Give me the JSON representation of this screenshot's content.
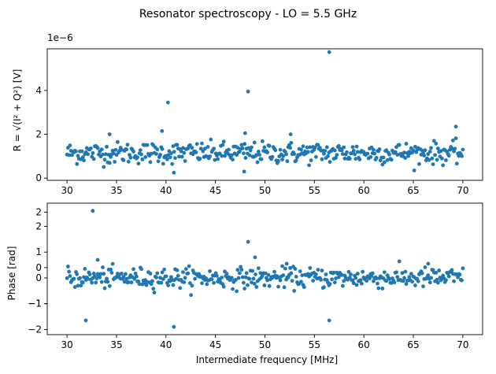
{
  "chart_data": {
    "type": "scatter",
    "title": "Resonator spectroscopy - LO = 5.5 GHz",
    "marker_color": "#1f77b4",
    "panels": [
      {
        "id": "amplitude",
        "ylabel": "R = √(I² + Q²) [V]",
        "ylabel_parts": {
          "prefix": "R = ",
          "radicand_i": "I",
          "radicand_plus": " + Q",
          "unit": " [V]"
        },
        "offset_text": "1e−6",
        "xlim": [
          28,
          72
        ],
        "ylim": [
          -0.1,
          5.9
        ],
        "xticks": [
          30,
          35,
          40,
          45,
          50,
          55,
          60,
          65,
          70
        ],
        "xtick_labels": [
          "30",
          "35",
          "40",
          "45",
          "50",
          "55",
          "60",
          "65",
          "70"
        ],
        "yticks": [
          0,
          2,
          4
        ],
        "ytick_labels": [
          "0",
          "2",
          "4"
        ],
        "outliers": [
          {
            "x": 40.2,
            "y": 3.45
          },
          {
            "x": 48.3,
            "y": 3.95
          },
          {
            "x": 56.5,
            "y": 5.75
          },
          {
            "x": 40.8,
            "y": 0.25
          },
          {
            "x": 47.9,
            "y": 0.3
          },
          {
            "x": 39.6,
            "y": 2.15
          },
          {
            "x": 69.3,
            "y": 2.35
          },
          {
            "x": 48.0,
            "y": 2.05
          },
          {
            "x": 52.6,
            "y": 2.0
          },
          {
            "x": 34.3,
            "y": 2.0
          }
        ],
        "noise": {
          "center": 1.15,
          "spread": 0.35
        }
      },
      {
        "id": "phase",
        "ylabel": "Phase [rad]",
        "xlabel": "Intermediate frequency [MHz]",
        "xlim": [
          28,
          72
        ],
        "ylim": [
          -2.2,
          2.9
        ],
        "xticks": [
          30,
          35,
          40,
          45,
          50,
          55,
          60,
          65,
          70
        ],
        "xtick_labels": [
          "30",
          "35",
          "40",
          "45",
          "50",
          "55",
          "60",
          "65",
          "70"
        ],
        "yticks": [
          -2,
          -1,
          0,
          1,
          2
        ],
        "ytick_labels": [
          "−2",
          "−1",
          "0",
          "1",
          "2"
        ],
        "extra_ytick_labels": [
          {
            "y": 2.55,
            "label": "2"
          },
          {
            "y": 0.4,
            "label": "0"
          },
          {
            "y": -1.0,
            "label": "−1"
          }
        ],
        "outliers": [
          {
            "x": 32.6,
            "y": 2.6
          },
          {
            "x": 48.3,
            "y": 1.4
          },
          {
            "x": 31.9,
            "y": -1.65
          },
          {
            "x": 40.8,
            "y": -1.9
          },
          {
            "x": 56.5,
            "y": -1.65
          },
          {
            "x": 49.0,
            "y": 0.8
          },
          {
            "x": 33.1,
            "y": 0.7
          },
          {
            "x": 66.5,
            "y": 0.55
          },
          {
            "x": 52.2,
            "y": 0.55
          }
        ],
        "noise": {
          "center": 0.0,
          "spread": 0.28
        }
      }
    ],
    "x_range_points": {
      "start": 30,
      "stop": 70,
      "count": 400
    }
  }
}
